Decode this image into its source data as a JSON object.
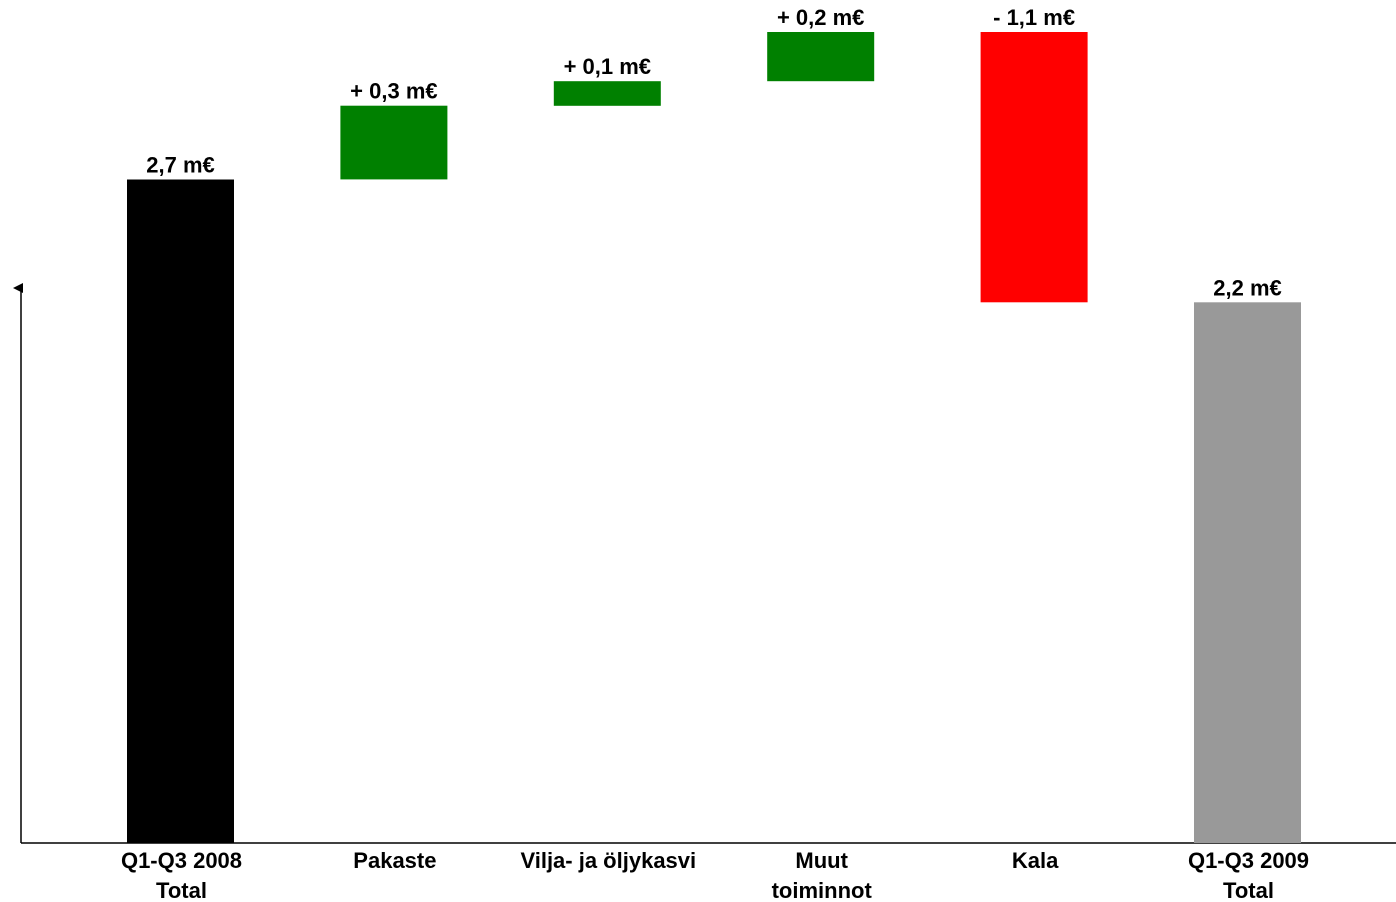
{
  "chart_data": {
    "type": "bar",
    "subtype": "waterfall",
    "categories": [
      [
        "Q1-Q3 2008",
        "Total"
      ],
      [
        "Pakaste"
      ],
      [
        "Vilja- ja öljykasvi"
      ],
      [
        "Muut",
        "toiminnot"
      ],
      [
        "Kala"
      ],
      [
        "Q1-Q3 2009",
        "Total"
      ]
    ],
    "bars": [
      {
        "kind": "total",
        "start": 0,
        "end": 2.7,
        "label": "2,7 m€",
        "color": "#000000"
      },
      {
        "kind": "delta",
        "start": 2.7,
        "end": 3.0,
        "label": "+ 0,3 m€",
        "color": "#008000"
      },
      {
        "kind": "delta",
        "start": 3.0,
        "end": 3.1,
        "label": "+ 0,1 m€",
        "color": "#008000"
      },
      {
        "kind": "delta",
        "start": 3.1,
        "end": 3.3,
        "label": "+ 0,2 m€",
        "color": "#008000"
      },
      {
        "kind": "delta",
        "start": 3.3,
        "end": 2.2,
        "label": "- 1,1 m€",
        "color": "#ff0000"
      },
      {
        "kind": "total",
        "start": 0,
        "end": 2.2,
        "label": "2,2 m€",
        "color": "#999999"
      }
    ],
    "title": "",
    "xlabel": "",
    "ylabel": "",
    "ylim": [
      0,
      3.3
    ],
    "grid": false,
    "legend": "none"
  }
}
